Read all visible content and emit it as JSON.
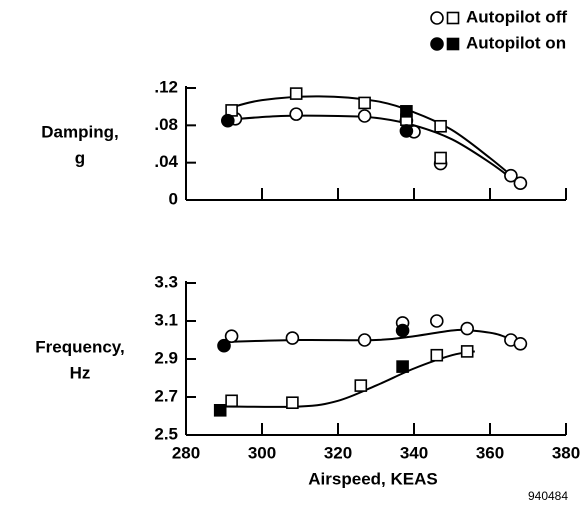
{
  "legend": [
    {
      "label": "Autopilot off",
      "filled": false
    },
    {
      "label": "Autopilot on",
      "filled": true
    }
  ],
  "code": "940484",
  "chart_data": [
    {
      "type": "scatter",
      "ylabel": [
        "Damping,",
        "g"
      ],
      "xlim": [
        280,
        380
      ],
      "xticks": [
        280,
        300,
        320,
        340,
        360,
        380
      ],
      "xtick_labels": false,
      "ylim": [
        0,
        0.12
      ],
      "yticks": [
        {
          "value": 0.12,
          "label": ".12"
        },
        {
          "value": 0.08,
          "label": ".08"
        },
        {
          "value": 0.04,
          "label": ".04"
        },
        0
      ],
      "series": [
        {
          "kind": "curve",
          "color": "#000000",
          "x": [
            291,
            300,
            315,
            330,
            340,
            350,
            360,
            368
          ],
          "values": [
            0.098,
            0.107,
            0.111,
            0.106,
            0.094,
            0.075,
            0.045,
            0.018
          ]
        },
        {
          "kind": "curve",
          "color": "#000000",
          "x": [
            291,
            305,
            320,
            330,
            340,
            350,
            360,
            366
          ],
          "values": [
            0.086,
            0.09,
            0.09,
            0.088,
            0.08,
            0.065,
            0.04,
            0.022
          ]
        },
        {
          "marker": "circle",
          "filled": false,
          "color": "#000000",
          "x": [
            293,
            309,
            327,
            338,
            340,
            347,
            365.5,
            368
          ],
          "values": [
            0.087,
            0.092,
            0.09,
            0.085,
            0.073,
            0.039,
            0.026,
            0.018
          ]
        },
        {
          "marker": "square",
          "filled": false,
          "color": "#000000",
          "x": [
            292,
            309,
            327,
            338,
            347,
            347
          ],
          "values": [
            0.096,
            0.114,
            0.104,
            0.086,
            0.079,
            0.045
          ]
        },
        {
          "marker": "circle",
          "filled": true,
          "color": "#000000",
          "x": [
            291,
            338
          ],
          "values": [
            0.085,
            0.074
          ]
        },
        {
          "marker": "square",
          "filled": true,
          "color": "#000000",
          "x": [
            338
          ],
          "values": [
            0.095
          ]
        }
      ]
    },
    {
      "type": "scatter",
      "ylabel": [
        "Frequency,",
        "Hz"
      ],
      "xlabel": "Airspeed, KEAS",
      "xlim": [
        280,
        380
      ],
      "xticks": [
        280,
        300,
        320,
        340,
        360,
        380
      ],
      "xtick_labels": true,
      "ylim": [
        2.5,
        3.3
      ],
      "yticks": [
        3.3,
        3.1,
        2.9,
        2.7,
        2.5
      ],
      "series": [
        {
          "kind": "curve",
          "color": "#000000",
          "x": [
            290,
            310,
            330,
            340,
            350,
            355,
            362,
            368
          ],
          "values": [
            2.99,
            3.0,
            3.0,
            3.02,
            3.05,
            3.05,
            3.03,
            2.98
          ]
        },
        {
          "kind": "curve",
          "color": "#000000",
          "x": [
            290,
            310,
            320,
            330,
            340,
            350,
            356
          ],
          "values": [
            2.65,
            2.65,
            2.68,
            2.76,
            2.85,
            2.92,
            2.94
          ]
        },
        {
          "marker": "circle",
          "filled": false,
          "color": "#000000",
          "x": [
            292,
            308,
            327,
            337,
            346,
            354,
            365.5,
            368
          ],
          "values": [
            3.02,
            3.01,
            3.0,
            3.09,
            3.1,
            3.06,
            3.0,
            2.98
          ]
        },
        {
          "marker": "square",
          "filled": false,
          "color": "#000000",
          "x": [
            292,
            308,
            326,
            346,
            354
          ],
          "values": [
            2.68,
            2.67,
            2.76,
            2.92,
            2.94
          ]
        },
        {
          "marker": "circle",
          "filled": true,
          "color": "#000000",
          "x": [
            290,
            337
          ],
          "values": [
            2.97,
            3.05
          ]
        },
        {
          "marker": "square",
          "filled": true,
          "color": "#000000",
          "x": [
            289,
            337
          ],
          "values": [
            2.63,
            2.86
          ]
        }
      ]
    }
  ]
}
